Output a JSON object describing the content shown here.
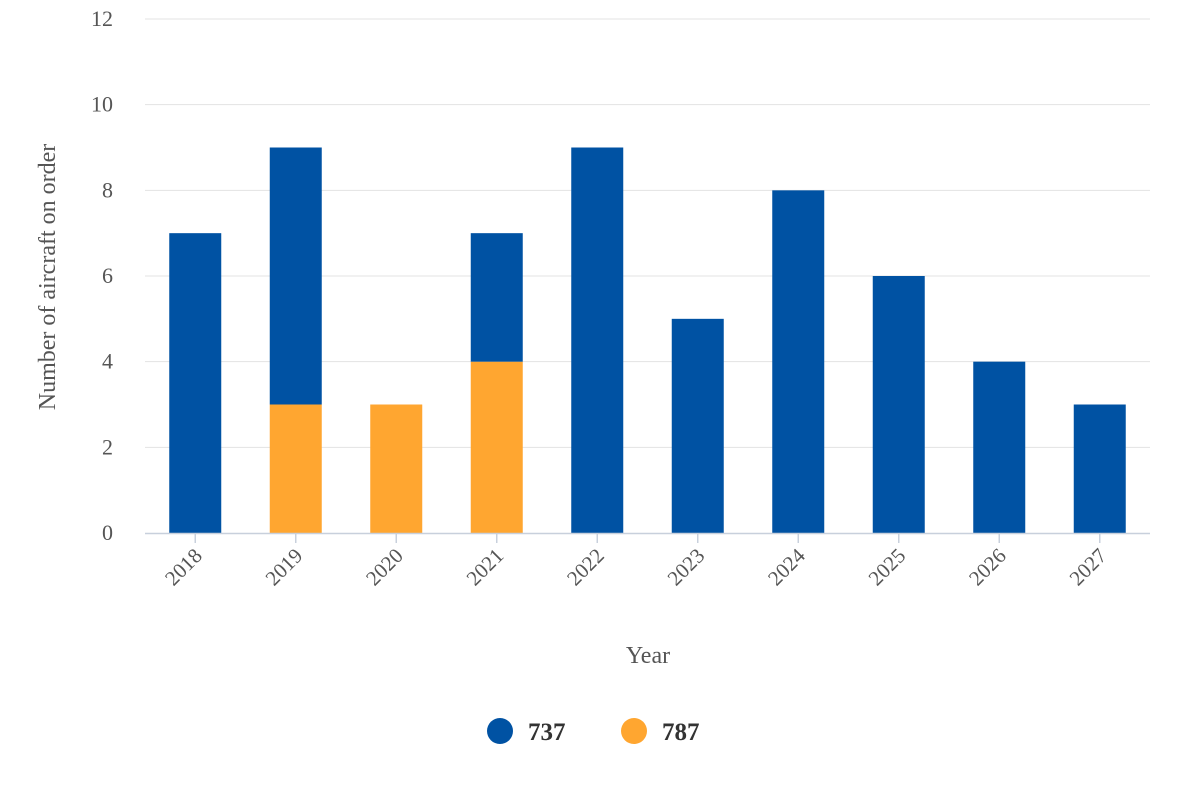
{
  "chart_data": {
    "type": "bar",
    "stacked": true,
    "title": "",
    "xlabel": "Year",
    "ylabel": "Number of aircraft on order",
    "ylim": [
      0,
      12
    ],
    "yticks": [
      "0",
      "2",
      "4",
      "6",
      "8",
      "10",
      "12"
    ],
    "categories": [
      "2018",
      "2019",
      "2020",
      "2021",
      "2022",
      "2023",
      "2024",
      "2025",
      "2026",
      "2027"
    ],
    "series": [
      {
        "name": "737",
        "color": "#0052a3",
        "values": [
          7,
          6,
          0,
          3,
          9,
          5,
          8,
          6,
          4,
          3
        ]
      },
      {
        "name": "787",
        "color": "#ffa630",
        "values": [
          0,
          3,
          3,
          4,
          0,
          0,
          0,
          0,
          0,
          0
        ]
      }
    ],
    "grid": true,
    "legend_position": "bottom-center"
  }
}
